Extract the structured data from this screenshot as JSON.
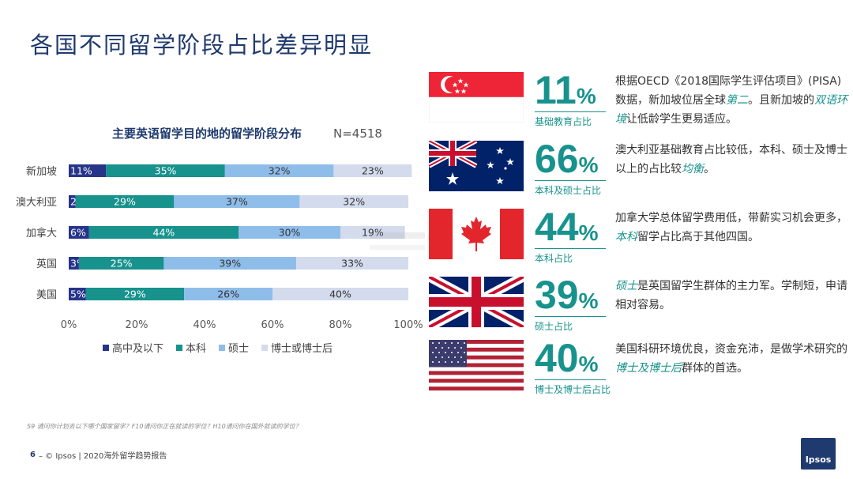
{
  "page": {
    "title": "各国不同留学阶段占比差异明显",
    "footnote": "S9 请问你计划去以下哪个国家留学？F10请问你正在就读的学位？H10请问你在国外就读的学位？",
    "page_number": "6",
    "footer_text": "–  © Ipsos | 2020海外留学趋势报告",
    "logo_text": "Ipsos"
  },
  "chart_data": {
    "type": "bar",
    "orientation": "horizontal",
    "stacked": true,
    "title": "主要英语留学目的地的留学阶段分布",
    "sample_note": "N=4518",
    "categories": [
      "新加坡",
      "澳大利亚",
      "加拿大",
      "英国",
      "美国"
    ],
    "series": [
      {
        "name": "高中及以下",
        "color": "#26348a",
        "values": [
          11,
          2,
          6,
          3,
          5
        ],
        "labels": [
          "11%",
          "2%",
          "6%",
          "3%",
          "5%"
        ]
      },
      {
        "name": "本科",
        "color": "#17928d",
        "values": [
          35,
          29,
          44,
          25,
          29
        ],
        "labels": [
          "35%",
          "29%",
          "44%",
          "25%",
          "29%"
        ]
      },
      {
        "name": "硕士",
        "color": "#8fbdea",
        "values": [
          32,
          37,
          30,
          39,
          26
        ],
        "labels": [
          "32%",
          "37%",
          "30%",
          "39%",
          "26%"
        ]
      },
      {
        "name": "博士或博士后",
        "color": "#d3dbed",
        "values": [
          23,
          32,
          19,
          33,
          40
        ],
        "labels": [
          "23%",
          "32%",
          "19%",
          "33%",
          "40%"
        ]
      }
    ],
    "x_ticks": [
      "0%",
      "20%",
      "40%",
      "60%",
      "80%",
      "100%"
    ],
    "xlim": [
      0,
      100
    ],
    "legend_position": "bottom",
    "grid": false
  },
  "countries": [
    {
      "flag": "singapore-flag",
      "pct": "11",
      "unit": "%",
      "caption": "基础教育占比",
      "desc": [
        {
          "t": "根据OECD《2018国际学生评估项目》(PISA)数据，新加坡位居全球"
        },
        {
          "t": "第二",
          "em": true
        },
        {
          "t": "。且新加坡的"
        },
        {
          "t": "双语环境",
          "em": true
        },
        {
          "t": "让低龄学生更易适应。"
        }
      ]
    },
    {
      "flag": "australia-flag",
      "pct": "66",
      "unit": "%",
      "caption": "本科及硕士占比",
      "desc": [
        {
          "t": "澳大利亚基础教育占比较低，本科、硕士及博士以上的占比较"
        },
        {
          "t": "均衡",
          "em": true
        },
        {
          "t": "。"
        }
      ]
    },
    {
      "flag": "canada-flag",
      "pct": "44",
      "unit": "%",
      "caption": "本科占比",
      "desc": [
        {
          "t": "加拿大学总体留学费用低，带薪实习机会更多，"
        },
        {
          "t": "本科",
          "em": true
        },
        {
          "t": "留学占比高于其他四国。"
        }
      ]
    },
    {
      "flag": "uk-flag",
      "pct": "39",
      "unit": "%",
      "caption": "硕士占比",
      "desc": [
        {
          "t": "硕士",
          "em": true
        },
        {
          "t": "是英国留学生群体的主力军。学制短，申请相对容易。"
        }
      ]
    },
    {
      "flag": "usa-flag",
      "pct": "40",
      "unit": "%",
      "caption": "博士及博士后占比",
      "desc": [
        {
          "t": "美国科研环境优良，资金充沛，是做学术研究的"
        },
        {
          "t": "博士及博士后",
          "em": true
        },
        {
          "t": "群体的首选。"
        }
      ]
    }
  ]
}
